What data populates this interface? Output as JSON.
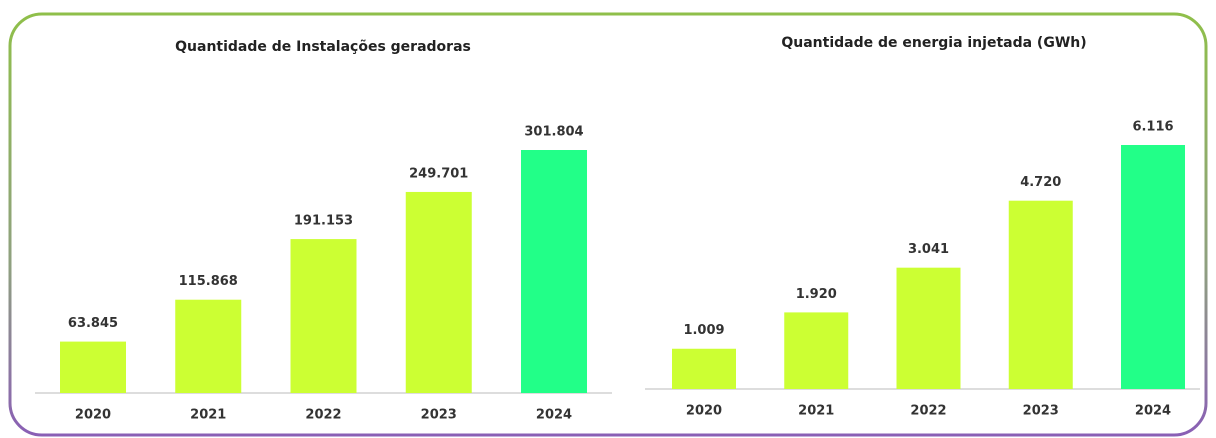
{
  "chart_data": [
    {
      "type": "bar",
      "title": "Quantidade de Instalações geradoras",
      "categories": [
        "2020",
        "2021",
        "2022",
        "2023",
        "2024"
      ],
      "values": [
        63845,
        115868,
        191153,
        249701,
        301804
      ],
      "value_labels": [
        "63.845",
        "115.868",
        "191.153",
        "249.701",
        "301.804"
      ],
      "colors": [
        "#ccff33",
        "#ccff33",
        "#ccff33",
        "#ccff33",
        "#22ff88"
      ]
    },
    {
      "type": "bar",
      "title": "Quantidade de energia injetada (GWh)",
      "categories": [
        "2020",
        "2021",
        "2022",
        "2023",
        "2024"
      ],
      "values": [
        1009,
        1920,
        3041,
        4720,
        6116
      ],
      "value_labels": [
        "1.009",
        "1.920",
        "3.041",
        "4.720",
        "6.116"
      ],
      "colors": [
        "#ccff33",
        "#ccff33",
        "#ccff33",
        "#ccff33",
        "#22ff88"
      ]
    }
  ]
}
